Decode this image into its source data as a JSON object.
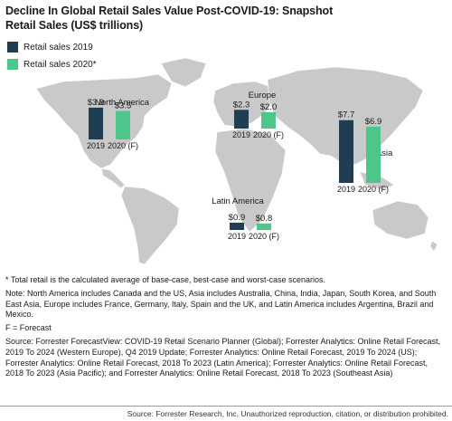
{
  "title_line1": "Decline In Global Retail Sales Value Post-COVID-19: Snapshot",
  "title_line2": "Retail Sales (US$ trillions)",
  "colors": {
    "series_2019": "#1f3e53",
    "series_2020": "#4ec58a",
    "map_land": "#c9c9c9"
  },
  "chart_data": {
    "type": "bar",
    "title": "Decline In Global Retail Sales Value Post-COVID-19: Snapshot",
    "subtitle": "Retail Sales (US$ trillions)",
    "categories": [
      "North America",
      "Europe",
      "Asia",
      "Latin America"
    ],
    "x": [
      "2019",
      "2020 (F)"
    ],
    "series": [
      {
        "name": "Retail sales 2019",
        "values": [
          3.9,
          2.3,
          7.7,
          0.9
        ],
        "labels": [
          "$3.9",
          "$2.3",
          "$7.7",
          "$0.9"
        ],
        "xlabel": "2019"
      },
      {
        "name": "Retail sales 2020*",
        "values": [
          3.5,
          2.0,
          6.9,
          0.8
        ],
        "labels": [
          "$3.5",
          "$2.0",
          "$6.9",
          "$0.8"
        ],
        "xlabel": "2020 (F)"
      }
    ],
    "legend_position": "top-left"
  },
  "notes": {
    "total": "* Total retail is the calculated average of base-case, best-case and worst-case scenarios.",
    "regions": "Note: North America includes Canada and the US, Asia includes Australia, China, India, Japan, South Korea, and South East Asia, Europe includes France, Germany, Italy, Spain and the UK, and Latin America includes Argentina, Brazil and Mexico.",
    "forecast": "F = Forecast",
    "source": "Source: Forrester ForecastView: COVID-19 Retail Scenario Planner (Global); Forrester Analytics: Online Retail Forecast, 2019 To 2024 (Western Europe), Q4 2019 Update; Forrester Analytics: Online Retail Forecast, 2019 To 2024 (US); Forrester Analytics: Online Retail Forecast, 2018 To 2023 (Latin America); Forrester Analytics: Online Retail Forecast, 2018 To 2023 (Asia Pacific); and Forrester Analytics: Online Retail Forecast, 2018 To 2023 (Southeast Asia)"
  },
  "footer": "Source: Forrester Research, Inc. Unauthorized reproduction, citation, or distribution prohibited."
}
